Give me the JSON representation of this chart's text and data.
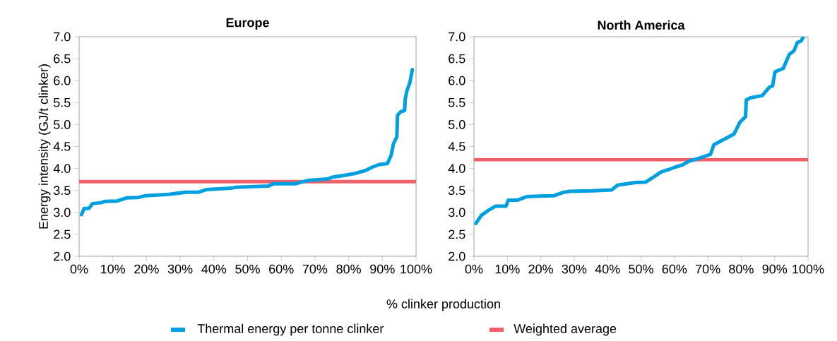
{
  "chart_data": [
    {
      "type": "line",
      "title": "Europe",
      "xlabel": "% clinker production",
      "ylabel": "Energy intensity (GJ/t clinker)",
      "legend": "bottom",
      "grid": false,
      "xlim": [
        0,
        100
      ],
      "xticks": [
        {
          "value": 0,
          "label": "0%"
        },
        {
          "value": 10,
          "label": "10%"
        },
        {
          "value": 20,
          "label": "20%"
        },
        {
          "value": 30,
          "label": "30%"
        },
        {
          "value": 40,
          "label": "40%"
        },
        {
          "value": 50,
          "label": "50%"
        },
        {
          "value": 60,
          "label": "60%"
        },
        {
          "value": 70,
          "label": "70%"
        },
        {
          "value": 80,
          "label": "80%"
        },
        {
          "value": 90,
          "label": "90%"
        },
        {
          "value": 100,
          "label": "100%"
        }
      ],
      "ylim": [
        2,
        7
      ],
      "yticks": [
        {
          "value": 2,
          "label": "2.0"
        },
        {
          "value": 2.5,
          "label": "2.5"
        },
        {
          "value": 3,
          "label": "3.0"
        },
        {
          "value": 3.5,
          "label": "3.5"
        },
        {
          "value": 4,
          "label": "4.0"
        },
        {
          "value": 4.5,
          "label": "4.5"
        },
        {
          "value": 5,
          "label": "5.0"
        },
        {
          "value": 5.5,
          "label": "5.5"
        },
        {
          "value": 6,
          "label": "6.0"
        },
        {
          "value": 6.5,
          "label": "6.5"
        },
        {
          "value": 7,
          "label": "7.0"
        }
      ],
      "series": [
        {
          "name": "Thermal energy per tonne clinker",
          "color": "#00a0e0",
          "x": [
            0.7,
            1.5,
            2.9,
            4.0,
            6.4,
            7.8,
            11.3,
            14.1,
            17.6,
            19.7,
            26.7,
            31.7,
            35.5,
            37.9,
            45.0,
            46.4,
            56.2,
            57.6,
            64.1,
            68.1,
            73.7,
            75.1,
            78.6,
            82.1,
            84.9,
            87.0,
            89.1,
            91.5,
            92.6,
            93.3,
            94.3,
            94.5,
            95.4,
            96.6,
            96.8,
            97.3,
            98.2,
            98.9
          ],
          "values": [
            2.95,
            3.09,
            3.09,
            3.2,
            3.22,
            3.25,
            3.26,
            3.33,
            3.34,
            3.38,
            3.41,
            3.46,
            3.46,
            3.52,
            3.55,
            3.57,
            3.6,
            3.65,
            3.65,
            3.73,
            3.76,
            3.8,
            3.84,
            3.89,
            3.95,
            4.03,
            4.09,
            4.11,
            4.3,
            4.56,
            4.72,
            5.21,
            5.29,
            5.32,
            5.58,
            5.77,
            5.96,
            6.25
          ]
        }
      ],
      "ref_lines": [
        {
          "axis": "y",
          "value": 3.7,
          "label": "Weighted average",
          "color": "#f0606a"
        }
      ]
    },
    {
      "type": "line",
      "title": "North America",
      "grid": false,
      "xlim": [
        0,
        100
      ],
      "xticks": [
        {
          "value": 0,
          "label": "0%"
        },
        {
          "value": 10,
          "label": "10%"
        },
        {
          "value": 20,
          "label": "20%"
        },
        {
          "value": 30,
          "label": "30%"
        },
        {
          "value": 40,
          "label": "40%"
        },
        {
          "value": 50,
          "label": "50%"
        },
        {
          "value": 60,
          "label": "60%"
        },
        {
          "value": 70,
          "label": "70%"
        },
        {
          "value": 80,
          "label": "80%"
        },
        {
          "value": 90,
          "label": "90%"
        },
        {
          "value": 100,
          "label": "100%"
        }
      ],
      "ylim": [
        2,
        7
      ],
      "yticks": [
        {
          "value": 2,
          "label": "2.0"
        },
        {
          "value": 2.5,
          "label": "2.5"
        },
        {
          "value": 3,
          "label": "3.0"
        },
        {
          "value": 3.5,
          "label": "3.5"
        },
        {
          "value": 4,
          "label": "4.0"
        },
        {
          "value": 4.5,
          "label": "4.5"
        },
        {
          "value": 5,
          "label": "5.0"
        },
        {
          "value": 5.5,
          "label": "5.5"
        },
        {
          "value": 6,
          "label": "6.0"
        },
        {
          "value": 6.5,
          "label": "6.5"
        },
        {
          "value": 7,
          "label": "7.0"
        }
      ],
      "series": [
        {
          "color": "#00a0e0",
          "x": [
            0.6,
            2.2,
            4.6,
            6.4,
            9.6,
            10.3,
            13.1,
            15.9,
            19.4,
            24.0,
            26.5,
            28.6,
            35.6,
            41.2,
            43.0,
            48.3,
            51.4,
            53.9,
            56.0,
            58.1,
            60.2,
            62.4,
            64.5,
            67.3,
            70.8,
            71.8,
            75.0,
            77.8,
            79.6,
            81.3,
            81.5,
            82.8,
            86.3,
            88.4,
            89.4,
            90.1,
            92.6,
            94.4,
            95.8,
            96.8,
            97.9,
            98.6
          ],
          "values": [
            2.75,
            2.93,
            3.06,
            3.14,
            3.14,
            3.28,
            3.28,
            3.36,
            3.37,
            3.38,
            3.45,
            3.48,
            3.49,
            3.51,
            3.62,
            3.68,
            3.69,
            3.81,
            3.92,
            3.97,
            4.03,
            4.08,
            4.17,
            4.23,
            4.32,
            4.54,
            4.67,
            4.78,
            5.05,
            5.18,
            5.56,
            5.61,
            5.66,
            5.85,
            5.88,
            6.2,
            6.28,
            6.6,
            6.68,
            6.87,
            6.9,
            7.0
          ]
        }
      ],
      "ref_lines": [
        {
          "axis": "y",
          "value": 4.2,
          "color": "#f0606a"
        }
      ]
    }
  ]
}
